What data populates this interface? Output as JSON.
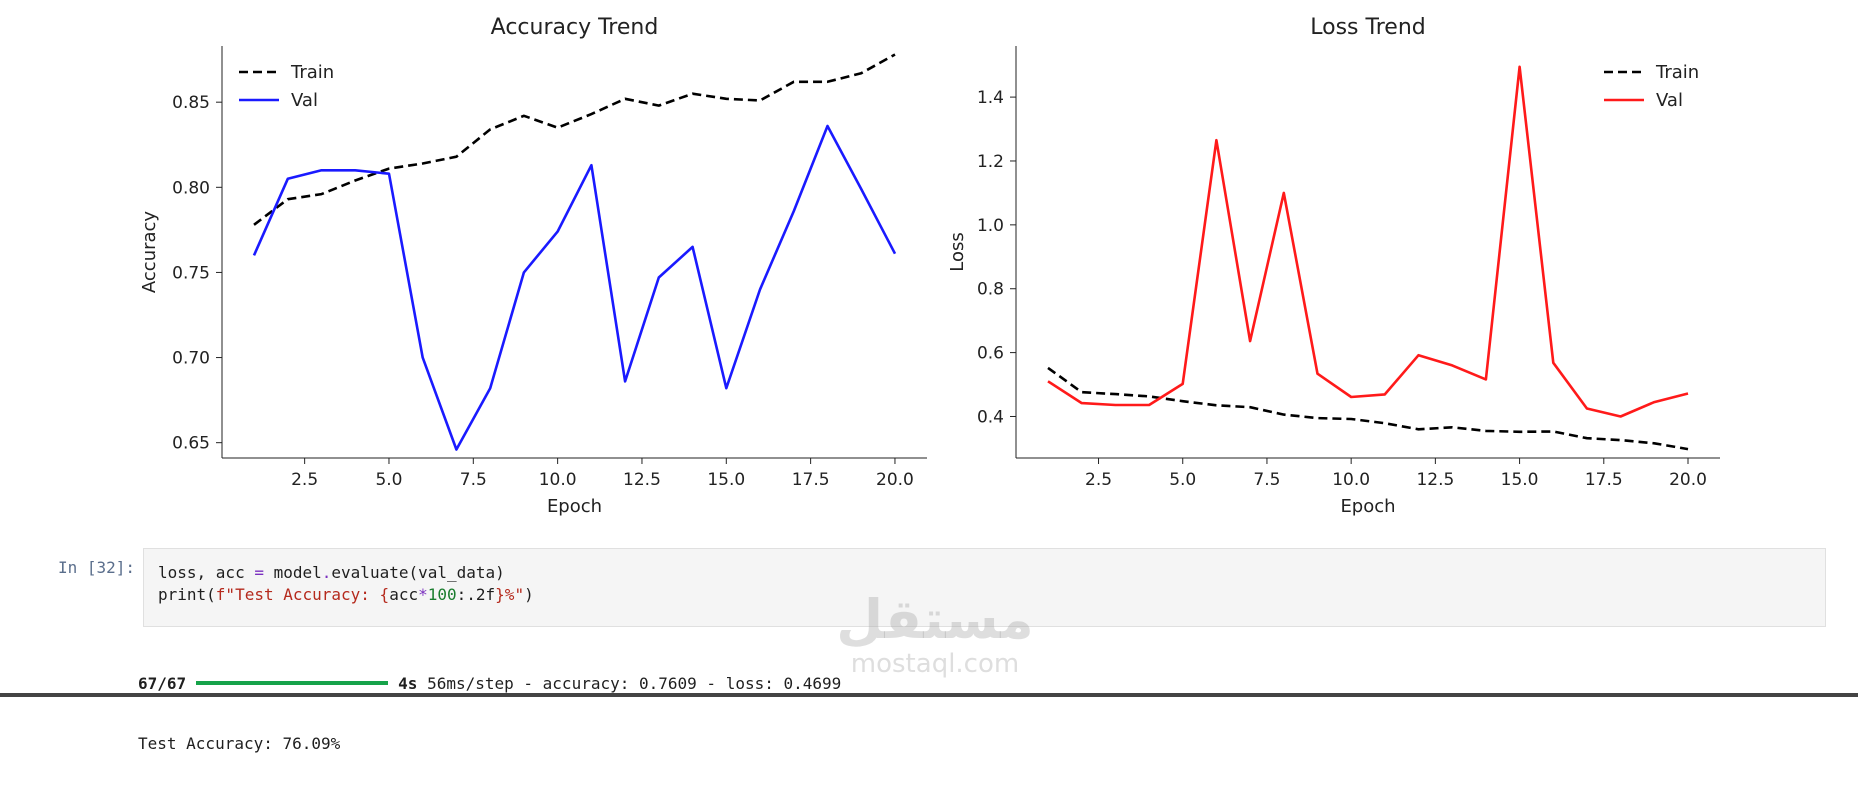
{
  "charts": [
    {
      "title": "Accuracy Trend",
      "xlabel": "Epoch",
      "ylabel": "Accuracy",
      "yticks": [
        "0.65",
        "0.70",
        "0.75",
        "0.80",
        "0.85"
      ],
      "xticks": [
        "2.5",
        "5.0",
        "7.5",
        "10.0",
        "12.5",
        "15.0",
        "17.5",
        "20.0"
      ],
      "legend": {
        "train": "Train",
        "val": "Val"
      }
    },
    {
      "title": "Loss Trend",
      "xlabel": "Epoch",
      "ylabel": "Loss",
      "yticks": [
        "0.4",
        "0.6",
        "0.8",
        "1.0",
        "1.2",
        "1.4"
      ],
      "xticks": [
        "2.5",
        "5.0",
        "7.5",
        "10.0",
        "12.5",
        "15.0",
        "17.5",
        "20.0"
      ],
      "legend": {
        "train": "Train",
        "val": "Val"
      }
    }
  ],
  "chart_data": [
    {
      "type": "line",
      "title": "Accuracy Trend",
      "xlabel": "Epoch",
      "ylabel": "Accuracy",
      "x": [
        1,
        2,
        3,
        4,
        5,
        6,
        7,
        8,
        9,
        10,
        11,
        12,
        13,
        14,
        15,
        16,
        17,
        18,
        19,
        20
      ],
      "xlim": [
        0.05,
        20.95
      ],
      "ylim": [
        0.641,
        0.883
      ],
      "xticks": [
        2.5,
        5.0,
        7.5,
        10.0,
        12.5,
        15.0,
        17.5,
        20.0
      ],
      "yticks": [
        0.65,
        0.7,
        0.75,
        0.8,
        0.85
      ],
      "legend_position": "top-left",
      "grid": false,
      "series": [
        {
          "name": "Train",
          "color": "#000000",
          "style": "dashed",
          "values": [
            0.778,
            0.793,
            0.796,
            0.804,
            0.811,
            0.814,
            0.818,
            0.834,
            0.842,
            0.835,
            0.843,
            0.852,
            0.848,
            0.855,
            0.852,
            0.851,
            0.862,
            0.862,
            0.867,
            0.878
          ]
        },
        {
          "name": "Val",
          "color": "#1a1aff",
          "style": "solid",
          "values": [
            0.76,
            0.805,
            0.81,
            0.81,
            0.808,
            0.7,
            0.646,
            0.682,
            0.75,
            0.774,
            0.813,
            0.686,
            0.747,
            0.765,
            0.682,
            0.74,
            0.786,
            0.836,
            0.799,
            0.761
          ]
        }
      ]
    },
    {
      "type": "line",
      "title": "Loss Trend",
      "xlabel": "Epoch",
      "ylabel": "Loss",
      "x": [
        1,
        2,
        3,
        4,
        5,
        6,
        7,
        8,
        9,
        10,
        11,
        12,
        13,
        14,
        15,
        16,
        17,
        18,
        19,
        20
      ],
      "xlim": [
        0.05,
        20.95
      ],
      "ylim": [
        0.27,
        1.56
      ],
      "xticks": [
        2.5,
        5.0,
        7.5,
        10.0,
        12.5,
        15.0,
        17.5,
        20.0
      ],
      "yticks": [
        0.4,
        0.6,
        0.8,
        1.0,
        1.2,
        1.4
      ],
      "legend_position": "top-right",
      "grid": false,
      "series": [
        {
          "name": "Train",
          "color": "#000000",
          "style": "dashed",
          "values": [
            0.552,
            0.476,
            0.47,
            0.463,
            0.448,
            0.435,
            0.429,
            0.406,
            0.395,
            0.392,
            0.379,
            0.36,
            0.366,
            0.355,
            0.352,
            0.353,
            0.332,
            0.326,
            0.316,
            0.298
          ]
        },
        {
          "name": "Val",
          "color": "#ff1a1a",
          "style": "solid",
          "values": [
            0.51,
            0.442,
            0.436,
            0.436,
            0.502,
            1.265,
            0.636,
            1.1,
            0.534,
            0.461,
            0.469,
            0.592,
            0.56,
            0.516,
            1.495,
            0.568,
            0.425,
            0.4,
            0.445,
            0.472
          ]
        }
      ]
    }
  ],
  "cell": {
    "prompt": "In [32]:",
    "code": {
      "l1_a": "loss, acc ",
      "l1_eq": "=",
      "l1_b": " model",
      "l1_dot": ".",
      "l1_c": "evaluate(val_data)",
      "l2_a": "print(",
      "l2_s1": "f\"Test Accuracy: {",
      "l2_b": "acc",
      "l2_mul": "*",
      "l2_num": "100",
      "l2_c": ":.2f",
      "l2_s2": "}%\"",
      "l2_d": ")"
    },
    "output": {
      "steps": "67/67",
      "progress": 1.0,
      "time": "4s",
      "rest": " 56ms/step - accuracy: 0.7609 - loss: 0.4699",
      "result": "Test Accuracy: 76.09%"
    }
  },
  "watermark": {
    "arabic": "مستقل",
    "english": "mostaql.com"
  }
}
